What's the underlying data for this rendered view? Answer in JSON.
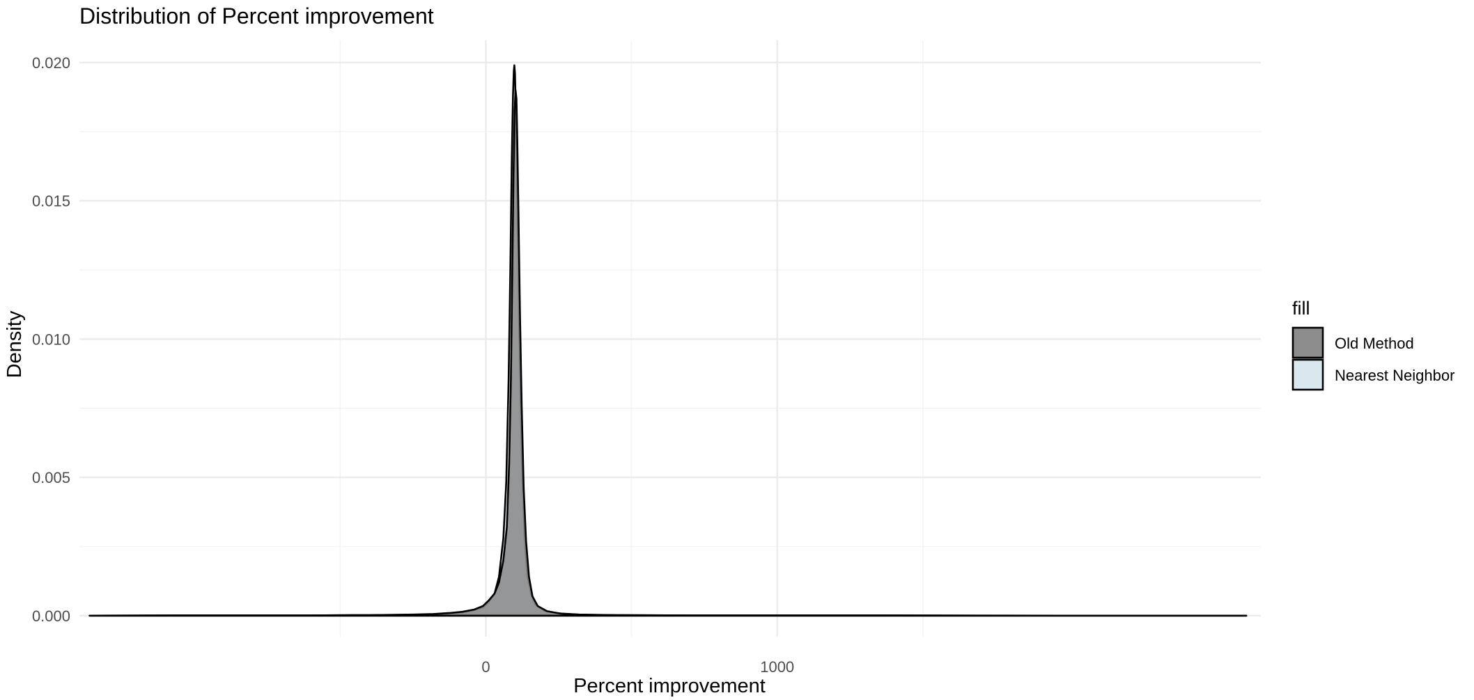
{
  "chart_data": {
    "type": "area",
    "title": "Distribution of Percent improvement",
    "xlabel": "Percent improvement",
    "ylabel": "Density",
    "xlim": [
      -1395,
      2660
    ],
    "ylim": [
      -0.00076,
      0.0208
    ],
    "x_ticks": [
      0,
      1000
    ],
    "x_tick_labels": [
      "0",
      "1000"
    ],
    "x_minor_ticks": [
      -500,
      500,
      1500
    ],
    "y_ticks": [
      0,
      0.005,
      0.01,
      0.015,
      0.02
    ],
    "y_tick_labels": [
      "0.000",
      "0.005",
      "0.010",
      "0.015",
      "0.020"
    ],
    "y_minor_ticks": [
      0.0025,
      0.0075,
      0.0125,
      0.0175
    ],
    "grid": true,
    "legend": {
      "title": "fill",
      "position": "right"
    },
    "series": [
      {
        "name": "Nearest Neighbor",
        "fill": "#d9e8ef",
        "opacity": 0.5,
        "points": [
          [
            -1360,
            0
          ],
          [
            -1000,
            1e-05
          ],
          [
            -600,
            1e-05
          ],
          [
            -400,
            2e-05
          ],
          [
            -250,
            3e-05
          ],
          [
            -180,
            5e-05
          ],
          [
            -120,
            8e-05
          ],
          [
            -80,
            0.00012
          ],
          [
            -40,
            0.0002
          ],
          [
            -10,
            0.0003
          ],
          [
            10,
            0.0005
          ],
          [
            30,
            0.0008
          ],
          [
            45,
            0.0014
          ],
          [
            60,
            0.0028
          ],
          [
            70,
            0.0048
          ],
          [
            78,
            0.0085
          ],
          [
            84,
            0.0125
          ],
          [
            89,
            0.0165
          ],
          [
            93,
            0.0188
          ],
          [
            96,
            0.0197
          ],
          [
            98,
            0.0199
          ],
          [
            100,
            0.0196
          ],
          [
            103,
            0.0182
          ],
          [
            107,
            0.0155
          ],
          [
            112,
            0.012
          ],
          [
            118,
            0.0083
          ],
          [
            125,
            0.005
          ],
          [
            133,
            0.0028
          ],
          [
            142,
            0.0015
          ],
          [
            155,
            0.0008
          ],
          [
            170,
            0.0004
          ],
          [
            200,
            0.00018
          ],
          [
            250,
            8e-05
          ],
          [
            320,
            4e-05
          ],
          [
            450,
            2e-05
          ],
          [
            700,
            1e-05
          ],
          [
            1200,
            1e-05
          ],
          [
            2000,
            0
          ],
          [
            2610,
            0
          ]
        ]
      },
      {
        "name": "Old Method",
        "fill": "#8c8c8c",
        "opacity": 0.9,
        "points": [
          [
            -1360,
            0
          ],
          [
            -1000,
            1e-05
          ],
          [
            -600,
            1e-05
          ],
          [
            -400,
            2e-05
          ],
          [
            -250,
            4e-05
          ],
          [
            -180,
            6e-05
          ],
          [
            -120,
            0.0001
          ],
          [
            -80,
            0.00014
          ],
          [
            -40,
            0.00022
          ],
          [
            -10,
            0.00035
          ],
          [
            10,
            0.00055
          ],
          [
            30,
            0.0008
          ],
          [
            45,
            0.0012
          ],
          [
            60,
            0.002
          ],
          [
            72,
            0.0032
          ],
          [
            80,
            0.0055
          ],
          [
            86,
            0.0085
          ],
          [
            91,
            0.0125
          ],
          [
            95,
            0.016
          ],
          [
            99,
            0.0183
          ],
          [
            102,
            0.019
          ],
          [
            105,
            0.0187
          ],
          [
            108,
            0.0172
          ],
          [
            112,
            0.0145
          ],
          [
            117,
            0.011
          ],
          [
            123,
            0.0076
          ],
          [
            130,
            0.0046
          ],
          [
            138,
            0.0027
          ],
          [
            148,
            0.0014
          ],
          [
            160,
            0.0007
          ],
          [
            178,
            0.00035
          ],
          [
            210,
            0.00016
          ],
          [
            260,
            7e-05
          ],
          [
            330,
            3e-05
          ],
          [
            450,
            2e-05
          ],
          [
            700,
            1e-05
          ],
          [
            1200,
            1e-05
          ],
          [
            2000,
            0
          ],
          [
            2610,
            0
          ]
        ]
      }
    ],
    "legend_entries": [
      {
        "label": "Old Method",
        "fill": "#8c8c8c"
      },
      {
        "label": "Nearest Neighbor",
        "fill": "#d9e8ef"
      }
    ]
  }
}
